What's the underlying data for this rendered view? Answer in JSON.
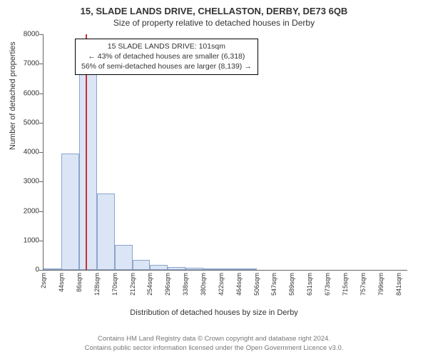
{
  "title_line1": "15, SLADE LANDS DRIVE, CHELLASTON, DERBY, DE73 6QB",
  "title_line2": "Size of property relative to detached houses in Derby",
  "y_label": "Number of detached properties",
  "x_label": "Distribution of detached houses by size in Derby",
  "info_box": {
    "l1": "15 SLADE LANDS DRIVE: 101sqm",
    "l2": "← 43% of detached houses are smaller (6,318)",
    "l3": "56% of semi-detached houses are larger (8,139) →"
  },
  "footer": {
    "l1": "Contains HM Land Registry data © Crown copyright and database right 2024.",
    "l2": "Contains public sector information licensed under the Open Government Licence v3.0."
  },
  "chart": {
    "type": "histogram",
    "background_color": "#ffffff",
    "bar_fill": "#dbe5f5",
    "bar_border": "#8ca5cc",
    "marker_color": "#c83232",
    "marker_x": 101,
    "axis_color": "#666666",
    "text_color": "#333333",
    "xlim": [
      2,
      862
    ],
    "ylim": [
      0,
      8000
    ],
    "y_ticks": [
      0,
      1000,
      2000,
      3000,
      4000,
      5000,
      6000,
      7000,
      8000
    ],
    "x_tick_labels": [
      "2sqm",
      "44sqm",
      "86sqm",
      "128sqm",
      "170sqm",
      "212sqm",
      "254sqm",
      "296sqm",
      "338sqm",
      "380sqm",
      "422sqm",
      "464sqm",
      "506sqm",
      "547sqm",
      "589sqm",
      "631sqm",
      "673sqm",
      "715sqm",
      "757sqm",
      "799sqm",
      "841sqm"
    ],
    "x_tick_positions": [
      2,
      44,
      86,
      128,
      170,
      212,
      254,
      296,
      338,
      380,
      422,
      464,
      506,
      547,
      589,
      631,
      673,
      715,
      757,
      799,
      841
    ],
    "bin_width": 42,
    "bars": [
      {
        "x_start": 2,
        "value": 60
      },
      {
        "x_start": 44,
        "value": 3950
      },
      {
        "x_start": 86,
        "value": 6700
      },
      {
        "x_start": 128,
        "value": 2600
      },
      {
        "x_start": 170,
        "value": 850
      },
      {
        "x_start": 212,
        "value": 350
      },
      {
        "x_start": 254,
        "value": 160
      },
      {
        "x_start": 296,
        "value": 90
      },
      {
        "x_start": 338,
        "value": 70
      },
      {
        "x_start": 380,
        "value": 60
      },
      {
        "x_start": 422,
        "value": 20
      },
      {
        "x_start": 464,
        "value": 15
      },
      {
        "x_start": 506,
        "value": 10
      },
      {
        "x_start": 547,
        "value": 8
      },
      {
        "x_start": 589,
        "value": 6
      },
      {
        "x_start": 631,
        "value": 5
      },
      {
        "x_start": 673,
        "value": 4
      },
      {
        "x_start": 715,
        "value": 3
      },
      {
        "x_start": 757,
        "value": 2
      },
      {
        "x_start": 799,
        "value": 2
      },
      {
        "x_start": 841,
        "value": 1
      }
    ]
  }
}
